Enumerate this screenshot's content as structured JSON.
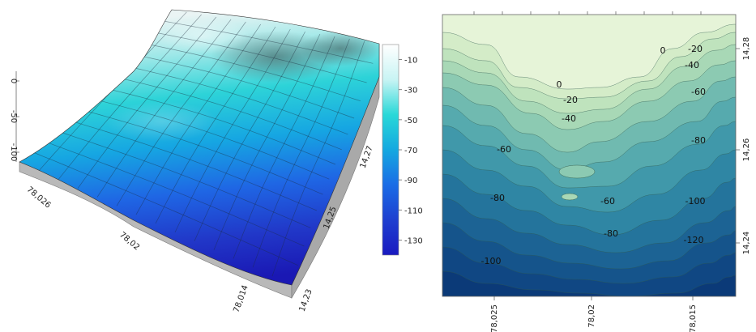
{
  "chart_data": [
    {
      "type": "surface3d",
      "z_axis_ticks": [
        "0",
        "-50",
        "-100"
      ],
      "x_axis_ticks": [
        "78,026",
        "78,02",
        "78,014"
      ],
      "y_axis_ticks": [
        "14,23",
        "14,25",
        "14,27"
      ],
      "colorbar": {
        "ticks": [
          "-10",
          "-30",
          "-50",
          "-70",
          "-90",
          "-110",
          "-130"
        ],
        "stops": [
          "#ffffff",
          "#c8f4f4",
          "#29d8d8",
          "#14a8e0",
          "#1a6ce6",
          "#1e3fd0",
          "#1a1ac0"
        ],
        "range": [
          -140,
          0
        ]
      },
      "grid": "on"
    },
    {
      "type": "contour",
      "x_axis_ticks": [
        "78,025",
        "78,02",
        "78,015"
      ],
      "y_axis_ticks": [
        "14,28",
        "14,26",
        "14,24"
      ],
      "levels": [
        0,
        -10,
        -20,
        -30,
        -40,
        -50,
        -60,
        -70,
        -80,
        -90,
        -100,
        -110,
        -120,
        -130
      ],
      "labels": [
        {
          "text": "0",
          "level": 0
        },
        {
          "text": "0",
          "level": 0
        },
        {
          "text": "-20",
          "level": -20
        },
        {
          "text": "-20",
          "level": -20
        },
        {
          "text": "-40",
          "level": -40
        },
        {
          "text": "-40",
          "level": -40
        },
        {
          "text": "-60",
          "level": -60
        },
        {
          "text": "-60",
          "level": -60
        },
        {
          "text": "-60",
          "level": -60
        },
        {
          "text": "-80",
          "level": -80
        },
        {
          "text": "-80",
          "level": -80
        },
        {
          "text": "-80",
          "level": -80
        },
        {
          "text": "-100",
          "level": -100
        },
        {
          "text": "-100",
          "level": -100
        },
        {
          "text": "-120",
          "level": -120
        }
      ],
      "fill_colors": [
        "#e6f4d8",
        "#d4ecc8",
        "#bfe3bd",
        "#a8d8b6",
        "#8ccab2",
        "#70bab0",
        "#56aaae",
        "#4098aa",
        "#2f86a4",
        "#24749c",
        "#1c6394",
        "#15548b",
        "#104783",
        "#0b3a78"
      ]
    }
  ]
}
